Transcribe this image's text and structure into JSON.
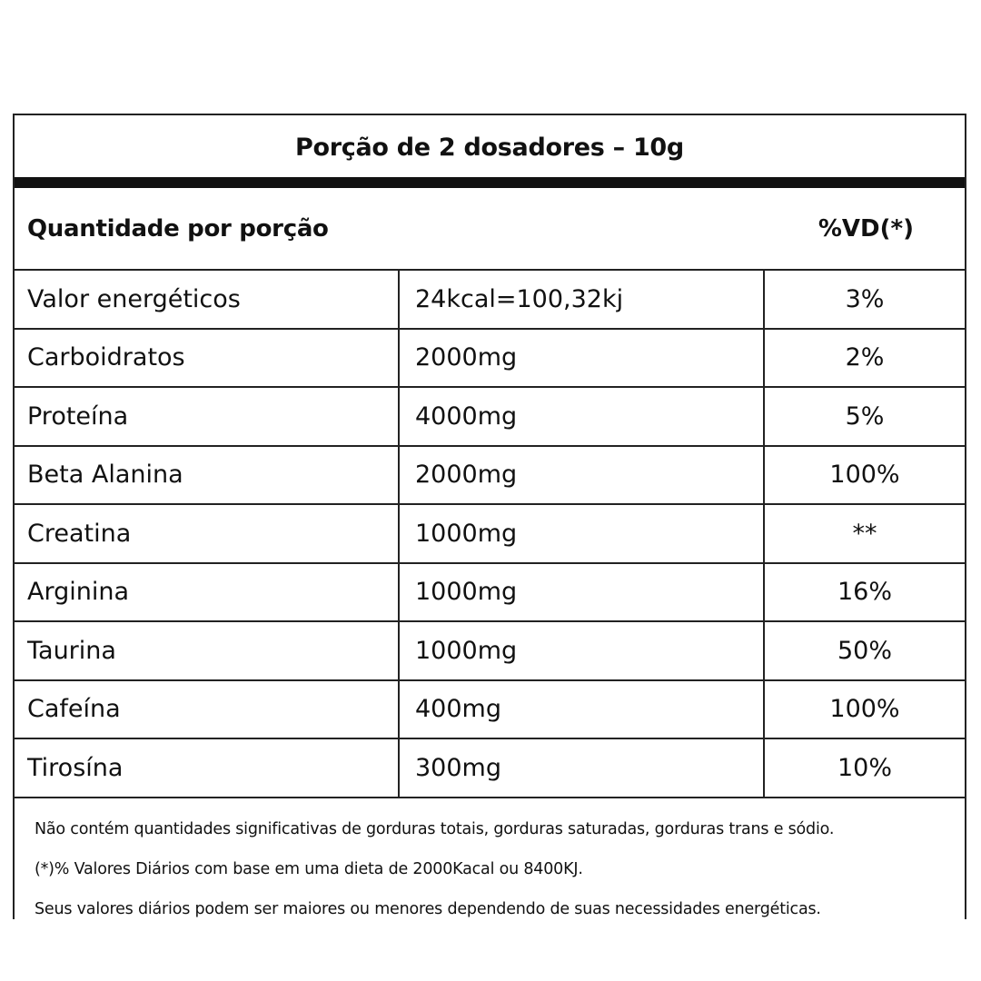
{
  "label": {
    "title": "Porção de 2 dosadores – 10g",
    "quantity_header": "Quantidade por porção",
    "dv_header": "%VD(*)",
    "rows": [
      {
        "name": "Valor energéticos",
        "amount": "24kcal=100,32kj",
        "dv": "3%"
      },
      {
        "name": "Carboidratos",
        "amount": "2000mg",
        "dv": "2%"
      },
      {
        "name": "Proteína",
        "amount": "4000mg",
        "dv": "5%"
      },
      {
        "name": "Beta Alanina",
        "amount": "2000mg",
        "dv": "100%"
      },
      {
        "name": "Creatina",
        "amount": "1000mg",
        "dv": "**"
      },
      {
        "name": "Arginina",
        "amount": "1000mg",
        "dv": "16%"
      },
      {
        "name": "Taurina",
        "amount": "1000mg",
        "dv": "50%"
      },
      {
        "name": "Cafeína",
        "amount": "400mg",
        "dv": "100%"
      },
      {
        "name": "Tirosína",
        "amount": "300mg",
        "dv": "10%"
      }
    ],
    "notes": [
      "Não contém quantidades significativas de gorduras totais, gorduras saturadas, gorduras trans e sódio.",
      "(*)% Valores Diários com base em uma dieta de 2000Kacal ou 8400KJ.",
      "Seus valores diários podem ser maiores ou menores dependendo de suas necessidades energéticas."
    ]
  }
}
